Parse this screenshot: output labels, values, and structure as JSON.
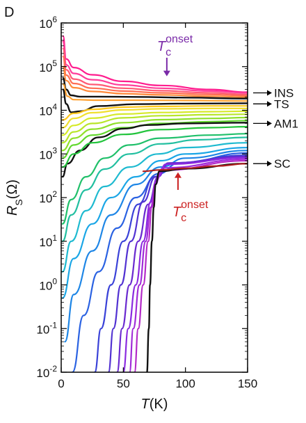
{
  "chart_data": {
    "type": "line",
    "panel_label": "D",
    "xlabel_var": "T",
    "xlabel_unit": "(K)",
    "ylabel_var": "R",
    "ylabel_sub": "S",
    "ylabel_unit": "(Ω)",
    "x_range": [
      0,
      150
    ],
    "y_range": [
      0.01,
      1000000
    ],
    "y_scale": "log",
    "x_ticks": [
      {
        "value": 0,
        "label": "0"
      },
      {
        "value": 50,
        "label": "50"
      },
      {
        "value": 100,
        "label": "100"
      },
      {
        "value": 150,
        "label": "150"
      }
    ],
    "y_ticks": [
      {
        "value": 1000000,
        "base": "10",
        "exp": "6"
      },
      {
        "value": 100000,
        "base": "10",
        "exp": "5"
      },
      {
        "value": 10000,
        "base": "10",
        "exp": "4"
      },
      {
        "value": 1000,
        "base": "10",
        "exp": "3"
      },
      {
        "value": 100,
        "base": "10",
        "exp": "2"
      },
      {
        "value": 10,
        "base": "10",
        "exp": "1"
      },
      {
        "value": 1,
        "base": "10",
        "exp": "0"
      },
      {
        "value": 0.1,
        "base": "10",
        "exp": "-1"
      },
      {
        "value": 0.01,
        "base": "10",
        "exp": "-2"
      }
    ],
    "region_labels": [
      {
        "text": "INS",
        "y": 25000
      },
      {
        "text": "TS",
        "y": 14000
      },
      {
        "text": "AM1",
        "y": 5000
      },
      {
        "text": "SC",
        "y": 600
      }
    ],
    "annotations": [
      {
        "var": "T",
        "sub": "c",
        "sup": "onset",
        "color": "#7a2aa8",
        "arrow_x": 85,
        "arrow_from": 160000,
        "arrow_to": 60000
      },
      {
        "var": "T",
        "sub": "c",
        "sup": "onset",
        "color": "#cc2222",
        "arrow_x": 94,
        "arrow_from": 150,
        "arrow_to": 380
      }
    ],
    "series": [
      {
        "color": "#ff1c8e",
        "points": [
          [
            1.5,
            500000
          ],
          [
            4,
            150000
          ],
          [
            10,
            95000
          ],
          [
            25,
            65000
          ],
          [
            50,
            46000
          ],
          [
            80,
            37000
          ],
          [
            120,
            30000
          ],
          [
            150,
            26000
          ]
        ]
      },
      {
        "color": "#ff3e9a",
        "points": [
          [
            1.5,
            380000
          ],
          [
            4,
            110000
          ],
          [
            10,
            70000
          ],
          [
            25,
            50000
          ],
          [
            50,
            38000
          ],
          [
            80,
            32000
          ],
          [
            120,
            27500
          ],
          [
            150,
            25000
          ]
        ]
      },
      {
        "color": "#ff5a74",
        "points": [
          [
            1.5,
            260000
          ],
          [
            4,
            85000
          ],
          [
            10,
            52000
          ],
          [
            25,
            39000
          ],
          [
            50,
            32000
          ],
          [
            80,
            28000
          ],
          [
            120,
            25000
          ],
          [
            150,
            23000
          ]
        ]
      },
      {
        "color": "#ff6e54",
        "points": [
          [
            1.5,
            170000
          ],
          [
            4,
            64000
          ],
          [
            10,
            41000
          ],
          [
            25,
            32000
          ],
          [
            50,
            27500
          ],
          [
            80,
            25000
          ],
          [
            120,
            23000
          ],
          [
            150,
            21500
          ]
        ]
      },
      {
        "color": "#ff8a3a",
        "points": [
          [
            1.5,
            100000
          ],
          [
            4,
            48000
          ],
          [
            10,
            33000
          ],
          [
            25,
            27000
          ],
          [
            50,
            24000
          ],
          [
            80,
            22500
          ],
          [
            120,
            21000
          ],
          [
            150,
            20000
          ]
        ]
      },
      {
        "color": "#111111",
        "points": [
          [
            1.5,
            55000
          ],
          [
            4,
            30000
          ],
          [
            8,
            22000
          ],
          [
            15,
            20500
          ],
          [
            30,
            20500
          ],
          [
            60,
            20200
          ],
          [
            100,
            19500
          ],
          [
            150,
            18500
          ]
        ]
      },
      {
        "color": "#ffa030",
        "points": [
          [
            1.5,
            40000
          ],
          [
            5,
            21000
          ],
          [
            10,
            17500
          ],
          [
            30,
            17000
          ],
          [
            60,
            17000
          ],
          [
            100,
            16800
          ],
          [
            150,
            16300
          ]
        ]
      },
      {
        "color": "#111111",
        "points": [
          [
            1.5,
            30000
          ],
          [
            4,
            14000
          ],
          [
            8,
            9000
          ],
          [
            15,
            9500
          ],
          [
            30,
            12500
          ],
          [
            60,
            13800
          ],
          [
            100,
            14200
          ],
          [
            150,
            14500
          ]
        ]
      },
      {
        "color": "#ffc61a",
        "points": [
          [
            1,
            6000
          ],
          [
            10,
            8500
          ],
          [
            25,
            10500
          ],
          [
            50,
            11800
          ],
          [
            80,
            12300
          ],
          [
            120,
            12600
          ],
          [
            150,
            12600
          ]
        ]
      },
      {
        "color": "#f0e030",
        "points": [
          [
            1,
            4000
          ],
          [
            10,
            6500
          ],
          [
            25,
            8800
          ],
          [
            50,
            10200
          ],
          [
            80,
            10800
          ],
          [
            120,
            11000
          ],
          [
            150,
            11000
          ]
        ]
      },
      {
        "color": "#d6ea2a",
        "points": [
          [
            1,
            2700
          ],
          [
            10,
            4500
          ],
          [
            25,
            6600
          ],
          [
            50,
            8200
          ],
          [
            80,
            8900
          ],
          [
            120,
            9300
          ],
          [
            150,
            9500
          ]
        ]
      },
      {
        "color": "#b8e62a",
        "points": [
          [
            1,
            1800
          ],
          [
            10,
            3200
          ],
          [
            25,
            5000
          ],
          [
            50,
            6700
          ],
          [
            80,
            7500
          ],
          [
            120,
            7900
          ],
          [
            150,
            8100
          ]
        ]
      },
      {
        "color": "#90e02a",
        "points": [
          [
            1,
            1200
          ],
          [
            10,
            2300
          ],
          [
            25,
            3700
          ],
          [
            50,
            5200
          ],
          [
            80,
            6100
          ],
          [
            120,
            6500
          ],
          [
            150,
            6800
          ]
        ]
      },
      {
        "color": "#62d82e",
        "points": [
          [
            1,
            800
          ],
          [
            10,
            1600
          ],
          [
            25,
            2700
          ],
          [
            50,
            4000
          ],
          [
            80,
            5000
          ],
          [
            120,
            5500
          ],
          [
            150,
            5800
          ]
        ]
      },
      {
        "color": "#111111",
        "points": [
          [
            1,
            300
          ],
          [
            5,
            600
          ],
          [
            15,
            1200
          ],
          [
            30,
            2400
          ],
          [
            50,
            3800
          ],
          [
            70,
            4600
          ],
          [
            100,
            5000
          ],
          [
            150,
            5200
          ]
        ]
      },
      {
        "color": "#22c43c",
        "points": [
          [
            1,
            500
          ],
          [
            10,
            1000
          ],
          [
            25,
            1800
          ],
          [
            50,
            2800
          ],
          [
            80,
            3600
          ],
          [
            120,
            4000
          ],
          [
            150,
            4200
          ]
        ]
      },
      {
        "color": "#20c06a",
        "points": [
          [
            1,
            25
          ],
          [
            8,
            90
          ],
          [
            20,
            300
          ],
          [
            35,
            800
          ],
          [
            55,
            1600
          ],
          [
            80,
            2300
          ],
          [
            120,
            2700
          ],
          [
            150,
            2900
          ]
        ]
      },
      {
        "color": "#22bfa0",
        "points": [
          [
            1,
            10
          ],
          [
            8,
            40
          ],
          [
            20,
            150
          ],
          [
            35,
            450
          ],
          [
            55,
            1000
          ],
          [
            80,
            1700
          ],
          [
            110,
            2100
          ],
          [
            150,
            2400
          ]
        ]
      },
      {
        "color": "#1ebad0",
        "points": [
          [
            1,
            2
          ],
          [
            8,
            10
          ],
          [
            20,
            50
          ],
          [
            35,
            180
          ],
          [
            55,
            500
          ],
          [
            78,
            1000
          ],
          [
            100,
            1400
          ],
          [
            150,
            1800
          ]
        ]
      },
      {
        "color": "#1aa6e6",
        "points": [
          [
            1,
            0.5
          ],
          [
            10,
            4
          ],
          [
            25,
            25
          ],
          [
            40,
            100
          ],
          [
            60,
            300
          ],
          [
            80,
            700
          ],
          [
            100,
            1000
          ],
          [
            150,
            1400
          ]
        ]
      },
      {
        "color": "#1e86e6",
        "points": [
          [
            3,
            0.05
          ],
          [
            10,
            0.6
          ],
          [
            25,
            6
          ],
          [
            40,
            40
          ],
          [
            60,
            200
          ],
          [
            80,
            500
          ],
          [
            100,
            800
          ],
          [
            150,
            1200
          ]
        ]
      },
      {
        "color": "#2a62e2",
        "points": [
          [
            9,
            0.01
          ],
          [
            18,
            0.2
          ],
          [
            30,
            2
          ],
          [
            45,
            20
          ],
          [
            60,
            100
          ],
          [
            78,
            350
          ],
          [
            95,
            620
          ],
          [
            150,
            1050
          ]
        ]
      },
      {
        "color": "#3a42d8",
        "points": [
          [
            27,
            0.01
          ],
          [
            32,
            0.1
          ],
          [
            40,
            1
          ],
          [
            50,
            10
          ],
          [
            62,
            70
          ],
          [
            75,
            300
          ],
          [
            88,
            620
          ],
          [
            150,
            930
          ]
        ]
      },
      {
        "color": "#5232d2",
        "points": [
          [
            38,
            0.01
          ],
          [
            42,
            0.1
          ],
          [
            48,
            1
          ],
          [
            56,
            10
          ],
          [
            66,
            80
          ],
          [
            76,
            300
          ],
          [
            86,
            600
          ],
          [
            150,
            880
          ]
        ]
      },
      {
        "color": "#6a2ad0",
        "points": [
          [
            45,
            0.01
          ],
          [
            49,
            0.1
          ],
          [
            55,
            1
          ],
          [
            62,
            10
          ],
          [
            70,
            70
          ],
          [
            78,
            300
          ],
          [
            86,
            620
          ],
          [
            150,
            860
          ]
        ]
      },
      {
        "color": "#8a2ae0",
        "points": [
          [
            50,
            0.01
          ],
          [
            54,
            0.1
          ],
          [
            60,
            1
          ],
          [
            66,
            10
          ],
          [
            72,
            80
          ],
          [
            78,
            300
          ],
          [
            84,
            580
          ],
          [
            150,
            820
          ]
        ]
      },
      {
        "color": "#a02ad8",
        "points": [
          [
            55,
            0.01
          ],
          [
            58,
            0.1
          ],
          [
            63,
            1
          ],
          [
            68,
            10
          ],
          [
            72,
            60
          ],
          [
            76,
            230
          ],
          [
            82,
            480
          ],
          [
            150,
            760
          ]
        ]
      },
      {
        "color": "#b42ac8",
        "points": [
          [
            59,
            0.01
          ],
          [
            62,
            0.1
          ],
          [
            66,
            1
          ],
          [
            70,
            10
          ],
          [
            73,
            60
          ],
          [
            76,
            200
          ],
          [
            80,
            420
          ],
          [
            150,
            700
          ]
        ]
      },
      {
        "color": "#111111",
        "points": [
          [
            69,
            0.01
          ],
          [
            70.5,
            0.1
          ],
          [
            71.5,
            1
          ],
          [
            73,
            10
          ],
          [
            74.5,
            60
          ],
          [
            76,
            200
          ],
          [
            79,
            400
          ],
          [
            100,
            460
          ],
          [
            150,
            600
          ]
        ]
      },
      {
        "color": "#b02020",
        "points": [
          [
            66,
            400
          ],
          [
            80,
            430
          ],
          [
            100,
            470
          ],
          [
            125,
            530
          ],
          [
            150,
            600
          ]
        ]
      }
    ]
  }
}
